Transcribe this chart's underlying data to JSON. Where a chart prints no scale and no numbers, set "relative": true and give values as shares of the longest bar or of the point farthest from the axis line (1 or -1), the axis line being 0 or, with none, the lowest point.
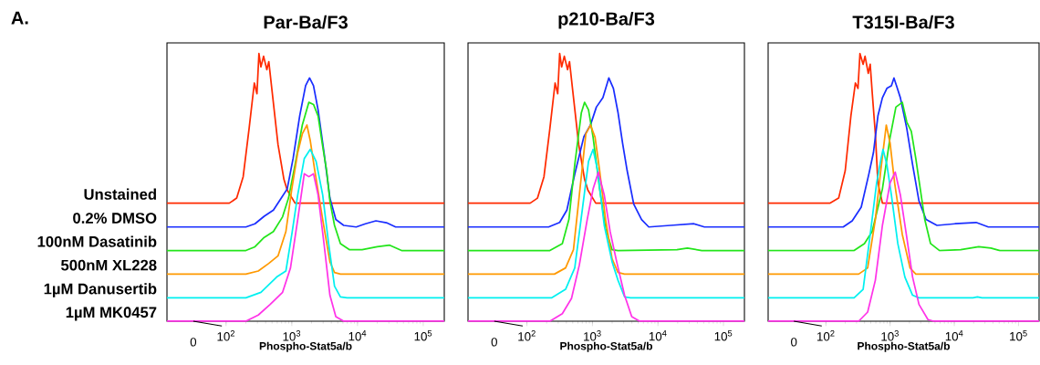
{
  "chart_data": [
    {
      "type": "line",
      "relative": true,
      "log": "x",
      "title": "Par-Ba/F3",
      "xlabel": "Phospho-Stat5a/b",
      "annotations": [
        "A.",
        "0"
      ],
      "xlim": [
        12.6,
        209000
      ],
      "xticks": [
        {
          "value": 100,
          "label": "10$^{2}$"
        },
        {
          "value": 1000,
          "label": "10$^{3}$"
        },
        {
          "value": 10000,
          "label": "10$^{4}$"
        },
        {
          "value": 100000,
          "label": "10$^{5}$"
        }
      ],
      "series": [
        {
          "name": "Unstained",
          "color": "#ff2a00",
          "x": [
            12.6,
            112,
            145,
            182,
            224,
            269,
            295,
            316,
            339,
            372,
            417,
            447,
            501,
            617,
            759,
            851,
            1122,
            209000
          ],
          "values": [
            0.441,
            0.441,
            0.46,
            0.54,
            0.72,
            0.89,
            0.85,
            1.0,
            0.95,
            0.99,
            0.94,
            0.97,
            0.86,
            0.66,
            0.53,
            0.49,
            0.441,
            0.441
          ]
        },
        {
          "name": "0.2% DMSO",
          "color": "#1a2eff",
          "x": [
            12.6,
            200,
            275,
            380,
            525,
            692,
            851,
            1047,
            1318,
            1622,
            1862,
            2138,
            2512,
            3090,
            3802,
            4677,
            6166,
            9550,
            13180,
            19050,
            27540,
            38020,
            209000
          ],
          "values": [
            0.352,
            0.352,
            0.364,
            0.392,
            0.415,
            0.46,
            0.494,
            0.608,
            0.767,
            0.88,
            0.909,
            0.88,
            0.79,
            0.63,
            0.46,
            0.38,
            0.358,
            0.352,
            0.364,
            0.375,
            0.368,
            0.352,
            0.352
          ]
        },
        {
          "name": "100nM Dasatinib",
          "color": "#22e51a",
          "x": [
            12.6,
            200,
            275,
            380,
            525,
            724,
            891,
            1122,
            1445,
            1820,
            2138,
            2512,
            2951,
            3388,
            3802,
            4467,
            5495,
            7586,
            11750,
            19950,
            30900,
            46770,
            209000
          ],
          "values": [
            0.264,
            0.264,
            0.278,
            0.313,
            0.335,
            0.39,
            0.46,
            0.585,
            0.733,
            0.818,
            0.81,
            0.767,
            0.653,
            0.5625,
            0.449,
            0.358,
            0.29,
            0.267,
            0.267,
            0.278,
            0.284,
            0.264,
            0.264
          ]
        },
        {
          "name": "500nM XL228",
          "color": "#ff9900",
          "x": [
            12.6,
            200,
            309,
            447,
            617,
            813,
            1000,
            1230,
            1445,
            1698,
            1905,
            2239,
            2951,
            3802,
            4467,
            5495,
            209000
          ],
          "values": [
            0.176,
            0.176,
            0.1875,
            0.216,
            0.244,
            0.335,
            0.494,
            0.63,
            0.7,
            0.733,
            0.676,
            0.5625,
            0.38,
            0.222,
            0.182,
            0.176,
            0.176
          ]
        },
        {
          "name": "1µM Danusertib",
          "color": "#00f0f0",
          "x": [
            12.6,
            200,
            339,
            589,
            813,
            1000,
            1230,
            1549,
            1905,
            2344,
            2951,
            3631,
            4467,
            5495,
            6918,
            209000
          ],
          "values": [
            0.0875,
            0.0875,
            0.108,
            0.165,
            0.1875,
            0.324,
            0.4716,
            0.608,
            0.642,
            0.597,
            0.4716,
            0.29,
            0.131,
            0.091,
            0.0875,
            0.0875
          ]
        },
        {
          "name": "1µM MK0457",
          "color": "#ff33e8",
          "x": [
            12.6,
            200,
            309,
            468,
            724,
            955,
            1230,
            1549,
            1820,
            2138,
            2512,
            3090,
            3802,
            4677,
            6166,
            209000
          ],
          "values": [
            0,
            0,
            0.023,
            0.0625,
            0.108,
            0.199,
            0.38,
            0.551,
            0.54,
            0.551,
            0.4716,
            0.29,
            0.097,
            0.017,
            0,
            0
          ]
        }
      ]
    },
    {
      "type": "line",
      "relative": true,
      "log": "x",
      "title": "p210-Ba/F3",
      "xlabel": "Phospho-Stat5a/b",
      "annotations": [
        "0"
      ],
      "xlim": [
        12.6,
        209000
      ],
      "xticks": [
        {
          "value": 100,
          "label": "10$^{2}$"
        },
        {
          "value": 1000,
          "label": "10$^{3}$"
        },
        {
          "value": 10000,
          "label": "10$^{4}$"
        },
        {
          "value": 100000,
          "label": "10$^{5}$"
        }
      ],
      "series": [
        {
          "color": "#ff2a00",
          "x": [
            12.6,
            112,
            145,
            182,
            224,
            269,
            295,
            316,
            339,
            372,
            417,
            447,
            501,
            617,
            759,
            851,
            1122,
            209000
          ],
          "values": [
            0.441,
            0.441,
            0.46,
            0.54,
            0.72,
            0.89,
            0.85,
            1.0,
            0.95,
            0.99,
            0.94,
            0.97,
            0.86,
            0.66,
            0.53,
            0.49,
            0.441,
            0.441
          ]
        },
        {
          "color": "#1a2eff",
          "x": [
            12.6,
            214,
            316,
            407,
            537,
            741,
            933,
            1148,
            1445,
            1778,
            2089,
            2455,
            2884,
            3388,
            4266,
            5623,
            7244,
            15490,
            35480,
            51290,
            209000
          ],
          "values": [
            0.352,
            0.352,
            0.369,
            0.415,
            0.55,
            0.69,
            0.733,
            0.8,
            0.835,
            0.909,
            0.87,
            0.78,
            0.665,
            0.5625,
            0.4375,
            0.38,
            0.352,
            0.358,
            0.364,
            0.352,
            0.352
          ]
        },
        {
          "color": "#22e51a",
          "x": [
            12.6,
            224,
            347,
            437,
            537,
            676,
            759,
            871,
            1023,
            1288,
            1585,
            1995,
            2455,
            19500,
            28180,
            46770,
            209000
          ],
          "values": [
            0.264,
            0.264,
            0.29,
            0.38,
            0.585,
            0.778,
            0.818,
            0.79,
            0.6875,
            0.494,
            0.347,
            0.267,
            0.264,
            0.267,
            0.273,
            0.264,
            0.264
          ]
        },
        {
          "color": "#ff9900",
          "x": [
            12.6,
            263,
            389,
            513,
            631,
            794,
            933,
            1096,
            1288,
            1585,
            1995,
            2455,
            3090,
            209000
          ],
          "values": [
            0.176,
            0.176,
            0.199,
            0.267,
            0.4716,
            0.7,
            0.733,
            0.6875,
            0.5625,
            0.38,
            0.233,
            0.182,
            0.176,
            0.176
          ]
        },
        {
          "color": "#00f0f0",
          "x": [
            12.6,
            240,
            389,
            537,
            708,
            871,
            1023,
            1202,
            1514,
            1995,
            2455,
            3090,
            3802,
            209000
          ],
          "values": [
            0.0875,
            0.0875,
            0.119,
            0.199,
            0.426,
            0.597,
            0.642,
            0.5625,
            0.358,
            0.222,
            0.153,
            0.091,
            0.0875,
            0.0875
          ]
        },
        {
          "color": "#ff33e8",
          "x": [
            12.6,
            224,
            347,
            479,
            631,
            832,
            1023,
            1230,
            1514,
            1862,
            2344,
            3090,
            3981,
            5248,
            209000
          ],
          "values": [
            0,
            0,
            0.028,
            0.085,
            0.21,
            0.38,
            0.494,
            0.557,
            0.4716,
            0.335,
            0.222,
            0.097,
            0.017,
            0,
            0
          ]
        }
      ]
    },
    {
      "type": "line",
      "relative": true,
      "log": "x",
      "title": "T315I-Ba/F3",
      "xlabel": "Phospho-Stat5a/b",
      "annotations": [
        "0"
      ],
      "xlim": [
        12.6,
        209000
      ],
      "xticks": [
        {
          "value": 100,
          "label": "10$^{2}$"
        },
        {
          "value": 1000,
          "label": "10$^{3}$"
        },
        {
          "value": 10000,
          "label": "10$^{4}$"
        },
        {
          "value": 100000,
          "label": "10$^{5}$"
        }
      ],
      "series": [
        {
          "color": "#ff2a00",
          "x": [
            12.6,
            115,
            158,
            200,
            245,
            288,
            316,
            339,
            380,
            407,
            457,
            490,
            525,
            589,
            646,
            759,
            209000
          ],
          "values": [
            0.441,
            0.441,
            0.46,
            0.5625,
            0.767,
            0.89,
            0.87,
            1.0,
            0.96,
            0.99,
            0.926,
            0.96,
            0.858,
            0.7,
            0.517,
            0.441,
            0.441
          ]
        },
        {
          "color": "#1a2eff",
          "x": [
            12.6,
            186,
            257,
            355,
            468,
            550,
            646,
            759,
            891,
            1047,
            1148,
            1259,
            1445,
            1820,
            2239,
            2818,
            3631,
            5370,
            10230,
            21880,
            33880,
            209000
          ],
          "values": [
            0.352,
            0.352,
            0.375,
            0.426,
            0.551,
            0.63,
            0.767,
            0.835,
            0.87,
            0.88,
            0.909,
            0.88,
            0.835,
            0.72,
            0.585,
            0.449,
            0.38,
            0.358,
            0.364,
            0.369,
            0.352,
            0.352
          ]
        },
        {
          "color": "#22e51a",
          "x": [
            12.6,
            275,
            398,
            525,
            759,
            1000,
            1230,
            1549,
            1820,
            2138,
            2512,
            2951,
            3467,
            4266,
            5888,
            12590,
            23990,
            37150,
            51290,
            209000
          ],
          "values": [
            0.264,
            0.264,
            0.29,
            0.335,
            0.494,
            0.6875,
            0.8,
            0.818,
            0.744,
            0.71,
            0.608,
            0.494,
            0.38,
            0.29,
            0.264,
            0.267,
            0.278,
            0.273,
            0.264,
            0.264
          ]
        },
        {
          "color": "#ff9900",
          "x": [
            12.6,
            324,
            447,
            589,
            724,
            871,
            1000,
            1175,
            1549,
            2042,
            2512,
            209000
          ],
          "values": [
            0.176,
            0.176,
            0.199,
            0.38,
            0.574,
            0.733,
            0.665,
            0.517,
            0.324,
            0.199,
            0.176,
            0.176
          ]
        },
        {
          "color": "#00f0f0",
          "x": [
            12.6,
            275,
            380,
            490,
            617,
            724,
            776,
            891,
            1047,
            1318,
            1698,
            2239,
            2818,
            19500,
            22910,
            26920,
            209000
          ],
          "values": [
            0.0875,
            0.0875,
            0.119,
            0.324,
            0.517,
            0.608,
            0.642,
            0.585,
            0.4716,
            0.29,
            0.165,
            0.097,
            0.0875,
            0.0875,
            0.091,
            0.0875,
            0.0875
          ]
        },
        {
          "color": "#ff33e8",
          "x": [
            12.6,
            324,
            447,
            589,
            759,
            1000,
            1202,
            1445,
            1820,
            2239,
            2818,
            3890,
            4786,
            209000
          ],
          "values": [
            0,
            0,
            0.034,
            0.153,
            0.358,
            0.517,
            0.557,
            0.4716,
            0.3125,
            0.165,
            0.0625,
            0.006,
            0,
            0
          ]
        }
      ]
    }
  ]
}
